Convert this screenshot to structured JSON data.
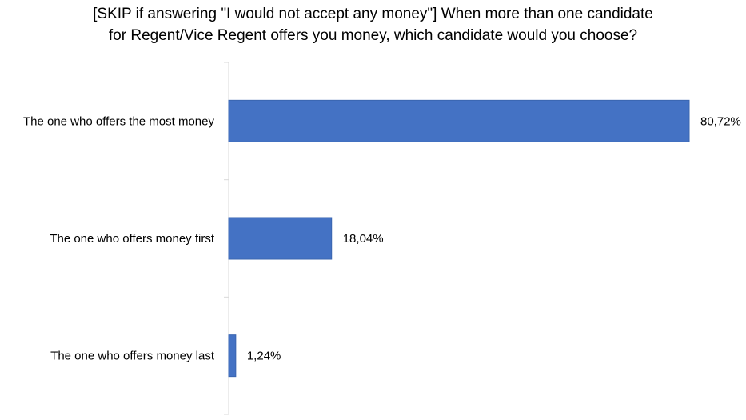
{
  "chart_data": {
    "type": "bar",
    "orientation": "horizontal",
    "title": "[SKIP if answering \"I would not accept any money\"] When more than one candidate\nfor Regent/Vice Regent offers you money, which candidate would you choose?",
    "categories": [
      "The one who offers the most money",
      "The one who offers money first",
      "The one who offers money last"
    ],
    "values": [
      80.72,
      18.04,
      1.24
    ],
    "data_labels": [
      "80,72%",
      "18,04%",
      "1,24%"
    ],
    "xlim": [
      0,
      80.72
    ],
    "bar_color": "#4472C4",
    "axis_color": "#D9D9D9",
    "grid": false,
    "legend": "none"
  }
}
